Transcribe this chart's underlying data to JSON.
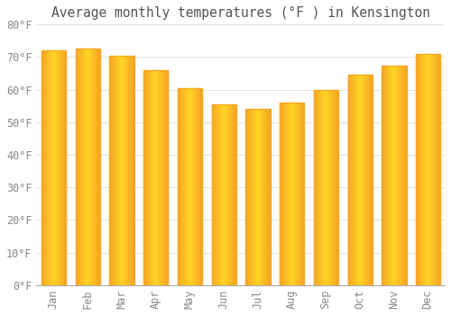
{
  "title": "Average monthly temperatures (°F ) in Kensington",
  "months": [
    "Jan",
    "Feb",
    "Mar",
    "Apr",
    "May",
    "Jun",
    "Jul",
    "Aug",
    "Sep",
    "Oct",
    "Nov",
    "Dec"
  ],
  "values": [
    72,
    72.5,
    70.5,
    66,
    60.5,
    55.5,
    54,
    56,
    60,
    64.5,
    67.5,
    71
  ],
  "bar_color_center": "#FFD54F",
  "bar_color_edge": "#F5A623",
  "background_color": "#FFFFFF",
  "plot_bg_color": "#FFFFFF",
  "grid_color": "#DDDDDD",
  "tick_label_color": "#888888",
  "title_color": "#555555",
  "axis_line_color": "#AAAAAA",
  "ylim": [
    0,
    80
  ],
  "ytick_step": 10,
  "xlabel_rotation": 90,
  "title_fontsize": 10.5,
  "tick_fontsize": 8.5
}
